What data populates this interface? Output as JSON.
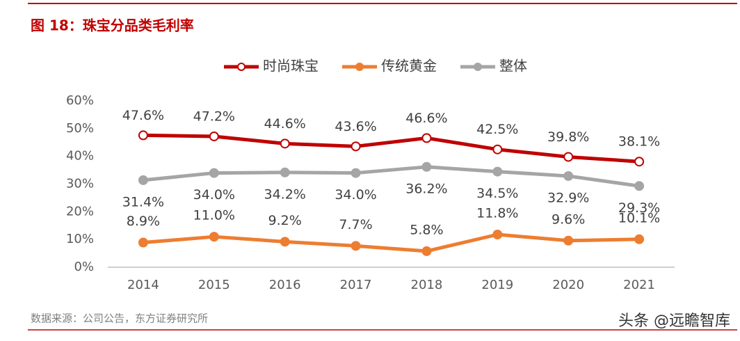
{
  "header": {
    "title": "图 18：珠宝分品类毛利率"
  },
  "chart_data": {
    "type": "line",
    "categories": [
      "2014",
      "2015",
      "2016",
      "2017",
      "2018",
      "2019",
      "2020",
      "2021"
    ],
    "series": [
      {
        "name": "时尚珠宝",
        "color": "#c00000",
        "marker": "open-circle",
        "values": [
          47.6,
          47.2,
          44.6,
          43.6,
          46.6,
          42.5,
          39.8,
          38.1
        ],
        "value_labels": [
          "47.6%",
          "47.2%",
          "44.6%",
          "43.6%",
          "46.6%",
          "42.5%",
          "39.8%",
          "38.1%"
        ]
      },
      {
        "name": "传统黄金",
        "color": "#ed7d31",
        "marker": "circle",
        "values": [
          8.9,
          11.0,
          9.2,
          7.7,
          5.8,
          11.8,
          9.6,
          10.1
        ],
        "value_labels": [
          "8.9%",
          "11.0%",
          "9.2%",
          "7.7%",
          "5.8%",
          "11.8%",
          "9.6%",
          "10.1%"
        ]
      },
      {
        "name": "整体",
        "color": "#a5a5a5",
        "marker": "circle",
        "values": [
          31.4,
          34.0,
          34.2,
          34.0,
          36.2,
          34.5,
          32.9,
          29.3
        ],
        "value_labels": [
          "31.4%",
          "34.0%",
          "34.2%",
          "34.0%",
          "36.2%",
          "34.5%",
          "32.9%",
          "29.3%"
        ]
      }
    ],
    "ylim": [
      0,
      60
    ],
    "yticks": [
      {
        "value": 0,
        "label": "0%"
      },
      {
        "value": 10,
        "label": "10%"
      },
      {
        "value": 20,
        "label": "20%"
      },
      {
        "value": 30,
        "label": "30%"
      },
      {
        "value": 40,
        "label": "40%"
      },
      {
        "value": 50,
        "label": "50%"
      },
      {
        "value": 60,
        "label": "60%"
      }
    ],
    "legend": "top"
  },
  "footer": {
    "source": "数据来源：公司公告，东方证券研究所",
    "watermark": "头条 @远瞻智库"
  }
}
